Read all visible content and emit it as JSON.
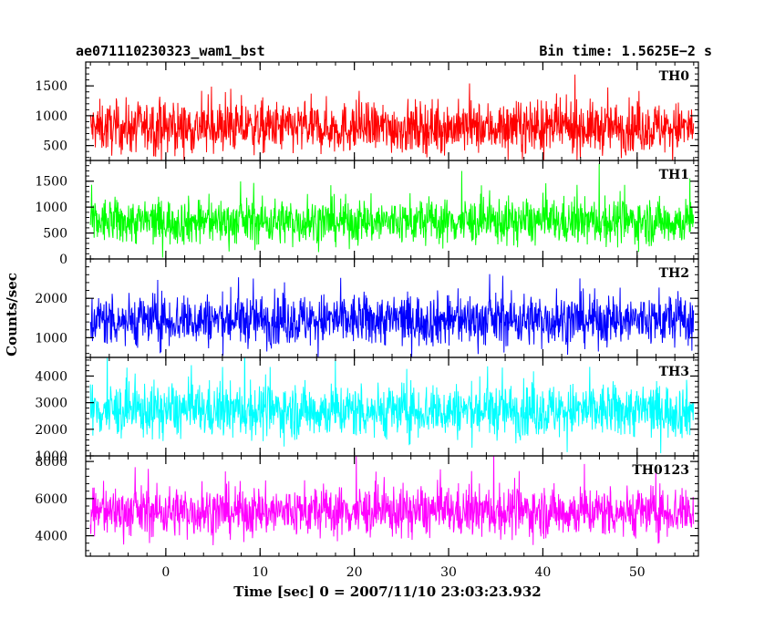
{
  "chart_data": {
    "type": "line",
    "title_left": "ae071110230323_wam1_bst",
    "title_right": "Bin time: 1.5625E−2 s",
    "xlabel": "Time [sec] 0 = 2007/11/10 23:03:23.932",
    "ylabel": "Counts/sec",
    "xlim": [
      -8.5,
      56.5
    ],
    "x_ticks": [
      0,
      10,
      20,
      30,
      40,
      50
    ],
    "x_tick_labels": [
      "0",
      "10",
      "20",
      "30",
      "40",
      "50"
    ],
    "x_data_range": [
      -8,
      56
    ],
    "series": [
      {
        "name": "TH0",
        "color": "#ff0000",
        "ylim": [
          250,
          1900
        ],
        "ticks": [
          500,
          1000,
          1500
        ],
        "tick_labels": [
          "500",
          "1000",
          "1500"
        ],
        "center": 800,
        "spread": 500
      },
      {
        "name": "TH1",
        "color": "#00ff00",
        "ylim": [
          0,
          1900
        ],
        "ticks": [
          0,
          500,
          1000,
          1500
        ],
        "tick_labels": [
          "0",
          "500",
          "1000",
          "1500"
        ],
        "center": 720,
        "spread": 520
      },
      {
        "name": "TH2",
        "color": "#0000ff",
        "ylim": [
          500,
          3000
        ],
        "ticks": [
          1000,
          2000
        ],
        "tick_labels": [
          "1000",
          "2000"
        ],
        "center": 1450,
        "spread": 780
      },
      {
        "name": "TH3",
        "color": "#00ffff",
        "ylim": [
          1000,
          4700
        ],
        "ticks": [
          1000,
          2000,
          3000,
          4000
        ],
        "tick_labels": [
          "1000",
          "2000",
          "3000",
          "4000"
        ],
        "center": 2700,
        "spread": 1200
      },
      {
        "name": "TH0123",
        "color": "#ff00ff",
        "ylim": [
          2900,
          8300
        ],
        "ticks": [
          4000,
          6000,
          8000
        ],
        "tick_labels": [
          "4000",
          "6000",
          "8000"
        ],
        "center": 5300,
        "spread": 1600
      }
    ]
  }
}
